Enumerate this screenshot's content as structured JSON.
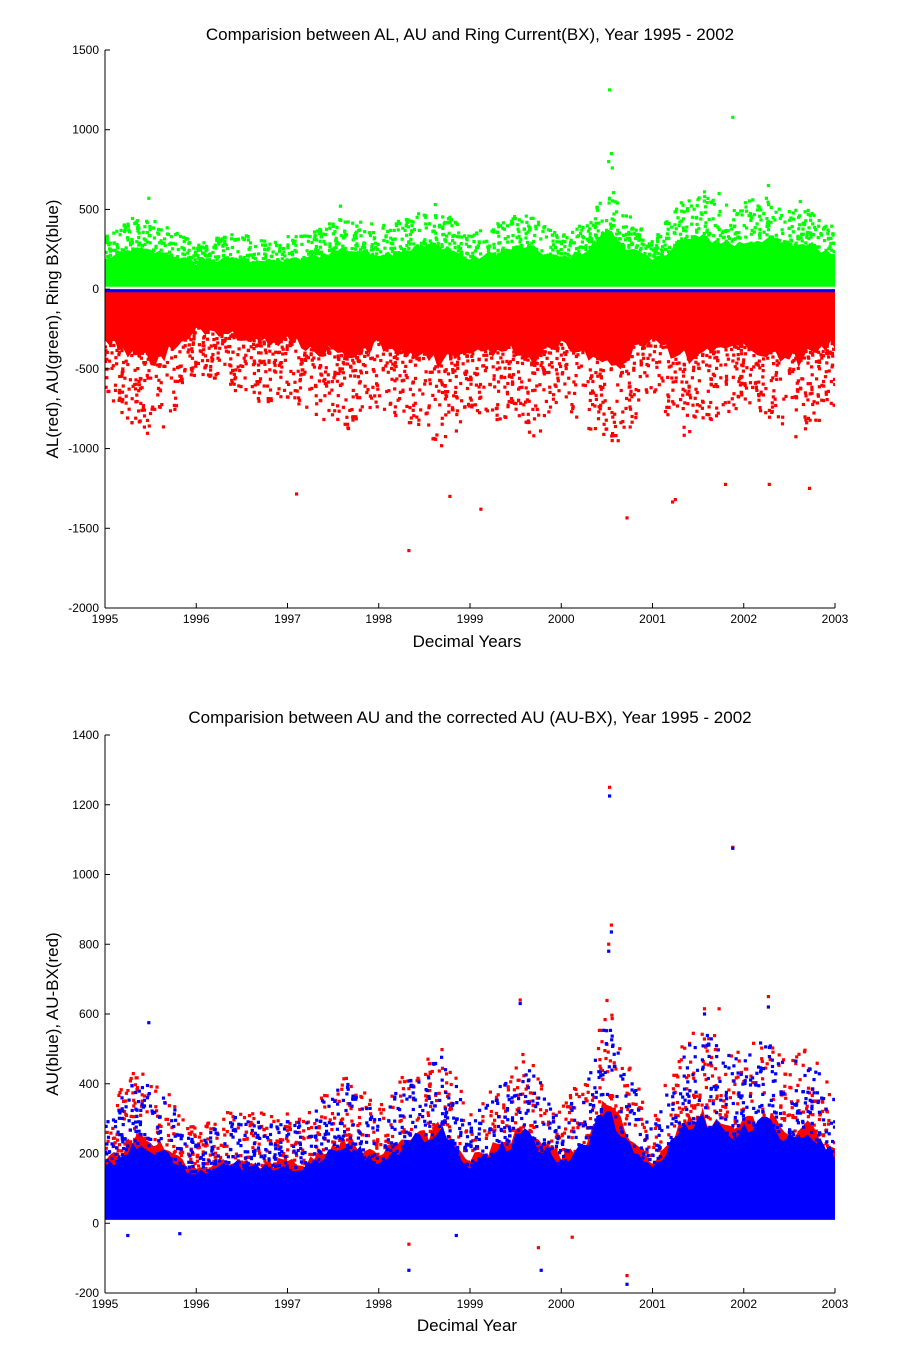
{
  "colors": {
    "red": "#ff0000",
    "green": "#00ff00",
    "blue": "#0000ff",
    "axis": "#000000"
  },
  "chart_data": [
    {
      "type": "scatter",
      "title": "Comparision between AL, AU and Ring Current(BX), Year 1995 - 2002",
      "xlabel": "Decimal Years",
      "ylabel": "AL(red), AU(green), Ring BX(blue)",
      "xlim": [
        1995,
        2003
      ],
      "ylim": [
        -2000,
        1500
      ],
      "xticks": [
        "1995",
        "1996",
        "1997",
        "1998",
        "1999",
        "2000",
        "2001",
        "2002",
        "2003"
      ],
      "yticks": [
        "1500",
        "1000",
        "500",
        "0",
        "-500",
        "-1000",
        "-1500",
        "-2000"
      ],
      "grid": false,
      "series": [
        {
          "name": "AU(green)",
          "color": "#00ff00",
          "band_lower": 15,
          "envelope": [
            [
              1995.0,
              320
            ],
            [
              1995.3,
              430
            ],
            [
              1995.6,
              400
            ],
            [
              1996.0,
              280
            ],
            [
              1996.4,
              330
            ],
            [
              1996.8,
              300
            ],
            [
              1997.2,
              330
            ],
            [
              1997.6,
              440
            ],
            [
              1998.0,
              380
            ],
            [
              1998.4,
              450
            ],
            [
              1998.7,
              480
            ],
            [
              1999.0,
              320
            ],
            [
              1999.4,
              430
            ],
            [
              1999.6,
              470
            ],
            [
              2000.0,
              330
            ],
            [
              2000.3,
              430
            ],
            [
              2000.5,
              650
            ],
            [
              2000.7,
              480
            ],
            [
              2001.0,
              300
            ],
            [
              2001.3,
              520
            ],
            [
              2001.6,
              560
            ],
            [
              2001.9,
              490
            ],
            [
              2002.2,
              560
            ],
            [
              2002.5,
              480
            ],
            [
              2002.7,
              500
            ],
            [
              2003.0,
              380
            ]
          ],
          "outliers": [
            [
              2000.53,
              1250
            ],
            [
              2001.88,
              1078
            ],
            [
              2000.55,
              850
            ],
            [
              2000.52,
              800
            ],
            [
              2000.56,
              760
            ],
            [
              1995.48,
              570
            ],
            [
              2002.27,
              650
            ],
            [
              2001.57,
              610
            ],
            [
              2001.73,
              600
            ],
            [
              2002.62,
              550
            ],
            [
              1998.62,
              530
            ],
            [
              1997.58,
              520
            ]
          ]
        },
        {
          "name": "Ring BX(blue)",
          "color": "#0000ff",
          "band": [
            -25,
            0
          ],
          "dips": [
            [
              1995.9,
              -40
            ],
            [
              1998.3,
              -55
            ],
            [
              1999.75,
              -90
            ],
            [
              2000.1,
              -60
            ],
            [
              2000.55,
              -110
            ],
            [
              2000.85,
              -90
            ],
            [
              2001.22,
              -180
            ],
            [
              2001.35,
              -100
            ],
            [
              2001.88,
              -70
            ],
            [
              2002.3,
              -60
            ],
            [
              2002.75,
              -50
            ]
          ]
        },
        {
          "name": "AL(red)",
          "color": "#ff0000",
          "band_upper": -20,
          "envelope": [
            [
              1995.0,
              -600
            ],
            [
              1995.3,
              -850
            ],
            [
              1995.6,
              -900
            ],
            [
              1996.0,
              -500
            ],
            [
              1996.4,
              -600
            ],
            [
              1996.8,
              -700
            ],
            [
              1997.0,
              -650
            ],
            [
              1997.4,
              -800
            ],
            [
              1997.7,
              -850
            ],
            [
              1998.0,
              -700
            ],
            [
              1998.4,
              -850
            ],
            [
              1998.7,
              -950
            ],
            [
              1999.0,
              -750
            ],
            [
              1999.4,
              -800
            ],
            [
              1999.7,
              -900
            ],
            [
              2000.0,
              -700
            ],
            [
              2000.4,
              -900
            ],
            [
              2000.6,
              -1000
            ],
            [
              2001.0,
              -600
            ],
            [
              2001.3,
              -900
            ],
            [
              2001.6,
              -800
            ],
            [
              2002.0,
              -700
            ],
            [
              2002.3,
              -800
            ],
            [
              2002.6,
              -900
            ],
            [
              2003.0,
              -700
            ]
          ],
          "outliers": [
            [
              1998.33,
              -1640
            ],
            [
              1997.1,
              -1285
            ],
            [
              1999.12,
              -1380
            ],
            [
              2000.72,
              -1435
            ],
            [
              2001.22,
              -1335
            ],
            [
              2001.25,
              -1320
            ],
            [
              2002.28,
              -1225
            ],
            [
              2002.72,
              -1250
            ],
            [
              1998.78,
              -1300
            ],
            [
              2001.8,
              -1225
            ]
          ]
        }
      ]
    },
    {
      "type": "scatter",
      "title": "Comparision between AU and the corrected AU (AU-BX), Year 1995 - 2002",
      "xlabel": "Decimal Year",
      "ylabel": "AU(blue), AU-BX(red)",
      "xlim": [
        1995,
        2003
      ],
      "ylim": [
        -200,
        1400
      ],
      "xticks": [
        "1995",
        "1996",
        "1997",
        "1998",
        "1999",
        "2000",
        "2001",
        "2002",
        "2003"
      ],
      "yticks": [
        "1400",
        "1200",
        "1000",
        "800",
        "600",
        "400",
        "200",
        "0",
        "-200"
      ],
      "grid": false,
      "series": [
        {
          "name": "AU-BX(red)",
          "color": "#ff0000",
          "envelope": [
            [
              1995.0,
              290
            ],
            [
              1995.3,
              420
            ],
            [
              1995.6,
              390
            ],
            [
              1996.0,
              260
            ],
            [
              1996.4,
              310
            ],
            [
              1996.8,
              300
            ],
            [
              1997.2,
              300
            ],
            [
              1997.6,
              420
            ],
            [
              1998.0,
              330
            ],
            [
              1998.4,
              440
            ],
            [
              1998.7,
              480
            ],
            [
              1999.0,
              310
            ],
            [
              1999.4,
              420
            ],
            [
              1999.6,
              470
            ],
            [
              2000.0,
              320
            ],
            [
              2000.3,
              420
            ],
            [
              2000.5,
              620
            ],
            [
              2000.7,
              460
            ],
            [
              2001.0,
              280
            ],
            [
              2001.3,
              500
            ],
            [
              2001.6,
              540
            ],
            [
              2001.9,
              470
            ],
            [
              2002.2,
              540
            ],
            [
              2002.5,
              460
            ],
            [
              2002.7,
              480
            ],
            [
              2003.0,
              360
            ]
          ],
          "outliers": [
            [
              2000.53,
              1250
            ],
            [
              2001.88,
              1078
            ],
            [
              2000.55,
              855
            ],
            [
              2000.52,
              800
            ],
            [
              2002.27,
              650
            ],
            [
              1999.55,
              640
            ],
            [
              2001.57,
              615
            ],
            [
              2001.73,
              615
            ],
            [
              2000.72,
              -150
            ],
            [
              1999.75,
              -70
            ],
            [
              2000.12,
              -40
            ],
            [
              1998.33,
              -60
            ]
          ]
        },
        {
          "name": "AU(blue)",
          "color": "#0000ff",
          "envelope": [
            [
              1995.0,
              270
            ],
            [
              1995.3,
              400
            ],
            [
              1995.6,
              370
            ],
            [
              1996.0,
              240
            ],
            [
              1996.4,
              290
            ],
            [
              1996.8,
              280
            ],
            [
              1997.2,
              280
            ],
            [
              1997.6,
              400
            ],
            [
              1998.0,
              310
            ],
            [
              1998.4,
              420
            ],
            [
              1998.7,
              460
            ],
            [
              1999.0,
              290
            ],
            [
              1999.4,
              400
            ],
            [
              1999.6,
              450
            ],
            [
              2000.0,
              300
            ],
            [
              2000.3,
              400
            ],
            [
              2000.5,
              600
            ],
            [
              2000.7,
              440
            ],
            [
              2001.0,
              260
            ],
            [
              2001.3,
              480
            ],
            [
              2001.6,
              520
            ],
            [
              2001.9,
              450
            ],
            [
              2002.2,
              520
            ],
            [
              2002.5,
              440
            ],
            [
              2002.7,
              460
            ],
            [
              2003.0,
              340
            ]
          ],
          "outliers": [
            [
              2000.53,
              1225
            ],
            [
              2001.88,
              1075
            ],
            [
              2000.55,
              835
            ],
            [
              2000.52,
              780
            ],
            [
              1995.48,
              575
            ],
            [
              1999.55,
              630
            ],
            [
              2002.27,
              620
            ],
            [
              2001.57,
              600
            ],
            [
              2000.72,
              -175
            ],
            [
              1999.78,
              -135
            ],
            [
              1998.33,
              -135
            ],
            [
              1995.25,
              -35
            ],
            [
              1995.82,
              -30
            ],
            [
              1998.85,
              -35
            ]
          ]
        }
      ]
    }
  ]
}
